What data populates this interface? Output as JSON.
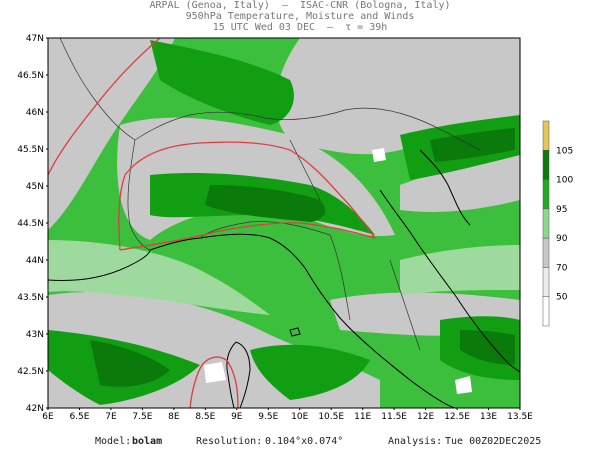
{
  "header": {
    "line1": "ARPAL (Genoa, Italy)  —  ISAC-CNR (Bologna, Italy)",
    "line2": "950hPa Temperature, Moisture and Winds",
    "line3": "15 UTC Wed 03 DEC  —  τ = 39h"
  },
  "map": {
    "lat_labels": [
      "47N",
      "46.5N",
      "46N",
      "45.5N",
      "45N",
      "44.5N",
      "44N",
      "43.5N",
      "43N",
      "42.5N",
      "42N"
    ],
    "lon_labels": [
      "6E",
      "6.5E",
      "7E",
      "7.5E",
      "8E",
      "8.5E",
      "9E",
      "9.5E",
      "10E",
      "10.5E",
      "11E",
      "11.5E",
      "12E",
      "12.5E",
      "13E",
      "13.5E"
    ],
    "lat_range": [
      42,
      47
    ],
    "lon_range": [
      6,
      13.5
    ],
    "colors": {
      "dry": "#ffffff",
      "light": "#c8c8c8",
      "pale_green": "#9ed99e",
      "mid_green": "#3cbf3c",
      "green": "#129e12",
      "dark_green": "#0a7a0a",
      "contour": "#e03c3c",
      "coast": "#000000",
      "wind_barb": "#8888aa"
    }
  },
  "colorbar": {
    "labels": [
      "105",
      "100",
      "95",
      "90",
      "70",
      "50"
    ],
    "colors": [
      "#e0c85a",
      "#0a7a0a",
      "#22aa22",
      "#8fd68f",
      "#c8c8c8",
      "#ececec",
      "#ffffff"
    ]
  },
  "footer": {
    "model_label": "Model:",
    "model_value": "bolam",
    "resolution_label": "Resolution:",
    "resolution_value": "0.104°x0.074°",
    "analysis_label": "Analysis:",
    "analysis_value": "Tue 00Z02DEC2025"
  }
}
